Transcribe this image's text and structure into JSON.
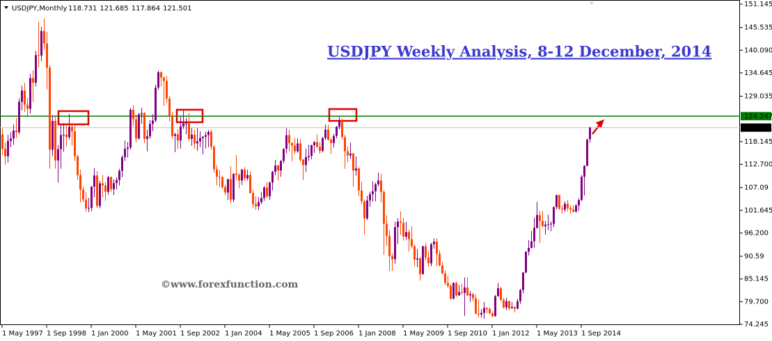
{
  "chart_data": {
    "type": "candlestick",
    "symbol": "USDJPY,Monthly",
    "title": "USDJPY Weekly Analysis, 8-12 December, 2014",
    "watermark": "©www.forexfunction.com",
    "up_color": "#800080",
    "down_color": "#ff4500",
    "ylim": [
      74.08,
      152.15
    ],
    "yticks": [
      151.145,
      145.535,
      {
        "value": 140.09,
        "label": "140.090"
      },
      134.645,
      129.035,
      118.145,
      {
        "value": 112.7,
        "label": "112.700"
      },
      107.09,
      101.645,
      {
        "value": 96.2,
        "label": "96.200"
      },
      90.59,
      85.145,
      {
        "value": 79.7,
        "label": "79.700"
      },
      74.245
    ],
    "xticks": [
      "1 May 1997",
      "1 Sep 1998",
      "1 Jan 2000",
      "1 May 2001",
      "1 Sep 2002",
      "1 Jan 2004",
      "1 May 2005",
      "1 Sep 2006",
      "1 Jan 2008",
      "1 May 2009",
      "1 Sep 2010",
      "1 Jan 2012",
      "1 May 2013",
      "1 Sep 2014"
    ],
    "level": {
      "value": 124.247,
      "color": "#008000"
    },
    "candles": [
      [
        119.9,
        121.4,
        114.9,
        116.4
      ],
      [
        116.4,
        117.9,
        112.6,
        114.6
      ],
      [
        114.6,
        119.8,
        113.1,
        118.3
      ],
      [
        118.3,
        120.4,
        116.8,
        118.9
      ],
      [
        118.9,
        122.3,
        117.4,
        120.8
      ],
      [
        120.8,
        123.8,
        119.0,
        120.4
      ],
      [
        120.4,
        128.5,
        119.9,
        127.7
      ],
      [
        127.7,
        131.6,
        125.6,
        130.4
      ],
      [
        130.4,
        132.2,
        125.2,
        127.0
      ],
      [
        127.0,
        128.6,
        124.4,
        126.0
      ],
      [
        126.0,
        134.4,
        124.9,
        133.4
      ],
      [
        133.4,
        135.3,
        127.7,
        132.3
      ],
      [
        132.3,
        139.9,
        131.4,
        138.9
      ],
      [
        138.9,
        146.9,
        136.0,
        138.8
      ],
      [
        138.8,
        145.7,
        137.5,
        144.7
      ],
      [
        144.7,
        147.7,
        140.2,
        141.7
      ],
      [
        141.7,
        144.5,
        130.7,
        135.9
      ],
      [
        135.9,
        136.5,
        111.6,
        116.2
      ],
      [
        116.2,
        124.4,
        114.7,
        123.1
      ],
      [
        123.1,
        124.1,
        111.7,
        113.6
      ],
      [
        113.6,
        117.3,
        108.3,
        116.3
      ],
      [
        116.3,
        122.1,
        111.6,
        119.7
      ],
      [
        119.7,
        122.5,
        115.7,
        119.8
      ],
      [
        119.8,
        122.3,
        117.0,
        119.2
      ],
      [
        119.2,
        124.8,
        118.6,
        121.7
      ],
      [
        121.7,
        122.6,
        117.2,
        120.6
      ],
      [
        120.6,
        122.4,
        113.5,
        114.6
      ],
      [
        114.6,
        115.0,
        109.0,
        110.1
      ],
      [
        110.1,
        111.4,
        103.5,
        106.6
      ],
      [
        106.6,
        107.3,
        103.6,
        104.2
      ],
      [
        104.2,
        106.0,
        101.3,
        102.1
      ],
      [
        102.1,
        104.6,
        101.2,
        102.2
      ],
      [
        102.2,
        107.5,
        101.4,
        107.3
      ],
      [
        107.3,
        111.8,
        104.8,
        110.0
      ],
      [
        110.0,
        111.0,
        102.2,
        102.7
      ],
      [
        102.7,
        108.7,
        102.1,
        108.1
      ],
      [
        108.1,
        110.1,
        104.8,
        107.6
      ],
      [
        107.6,
        108.4,
        103.9,
        106.1
      ],
      [
        106.1,
        109.9,
        105.4,
        109.6
      ],
      [
        109.6,
        109.8,
        106.0,
        106.7
      ],
      [
        106.7,
        109.1,
        105.3,
        108.2
      ],
      [
        108.2,
        109.6,
        106.6,
        108.9
      ],
      [
        108.9,
        111.6,
        107.6,
        111.1
      ],
      [
        111.1,
        114.8,
        109.6,
        114.4
      ],
      [
        114.4,
        118.4,
        113.5,
        116.4
      ],
      [
        116.4,
        118.0,
        114.3,
        116.7
      ],
      [
        116.7,
        126.2,
        116.2,
        125.8
      ],
      [
        125.8,
        126.9,
        121.9,
        123.5
      ],
      [
        123.5,
        124.6,
        118.0,
        118.9
      ],
      [
        118.9,
        125.0,
        118.6,
        124.7
      ],
      [
        124.7,
        126.3,
        122.4,
        125.0
      ],
      [
        125.0,
        125.2,
        117.8,
        118.8
      ],
      [
        118.8,
        121.0,
        115.8,
        119.4
      ],
      [
        119.4,
        123.3,
        118.8,
        122.4
      ],
      [
        122.4,
        124.7,
        120.6,
        123.2
      ],
      [
        123.2,
        131.8,
        122.8,
        131.1
      ],
      [
        131.1,
        135.2,
        130.6,
        134.8
      ],
      [
        134.8,
        135.0,
        131.4,
        133.5
      ],
      [
        133.5,
        133.8,
        126.7,
        132.7
      ],
      [
        132.7,
        133.9,
        127.5,
        128.5
      ],
      [
        128.5,
        129.1,
        123.0,
        124.2
      ],
      [
        124.2,
        125.3,
        118.9,
        119.5
      ],
      [
        119.5,
        120.3,
        115.6,
        119.9
      ],
      [
        119.9,
        121.1,
        116.3,
        118.4
      ],
      [
        118.4,
        124.4,
        116.5,
        121.8
      ],
      [
        121.8,
        125.6,
        121.2,
        122.5
      ],
      [
        122.5,
        123.8,
        119.9,
        122.5
      ],
      [
        122.5,
        125.0,
        118.2,
        118.8
      ],
      [
        118.8,
        121.4,
        117.1,
        119.8
      ],
      [
        119.8,
        121.0,
        116.4,
        117.7
      ],
      [
        117.7,
        121.4,
        115.9,
        118.2
      ],
      [
        118.2,
        120.6,
        116.8,
        119.0
      ],
      [
        119.0,
        119.5,
        115.1,
        119.3
      ],
      [
        119.3,
        120.5,
        116.5,
        119.7
      ],
      [
        119.7,
        120.9,
        116.8,
        120.5
      ],
      [
        120.5,
        121.0,
        116.2,
        116.9
      ],
      [
        116.9,
        117.2,
        110.7,
        111.5
      ],
      [
        111.5,
        112.4,
        107.6,
        109.7
      ],
      [
        109.7,
        111.3,
        107.1,
        109.6
      ],
      [
        109.6,
        109.9,
        106.7,
        107.2
      ],
      [
        107.2,
        107.8,
        105.3,
        105.9
      ],
      [
        105.9,
        109.3,
        104.1,
        109.1
      ],
      [
        109.1,
        112.2,
        103.4,
        104.2
      ],
      [
        104.2,
        110.5,
        103.6,
        110.4
      ],
      [
        110.4,
        114.9,
        108.9,
        110.1
      ],
      [
        110.1,
        110.6,
        106.9,
        108.8
      ],
      [
        108.8,
        111.6,
        107.7,
        111.4
      ],
      [
        111.4,
        112.0,
        108.7,
        109.3
      ],
      [
        109.3,
        111.4,
        108.8,
        110.1
      ],
      [
        110.1,
        111.0,
        105.6,
        105.8
      ],
      [
        105.8,
        106.6,
        102.1,
        103.1
      ],
      [
        103.1,
        105.0,
        101.8,
        102.6
      ],
      [
        102.6,
        104.8,
        101.7,
        103.6
      ],
      [
        103.6,
        106.0,
        103.1,
        104.6
      ],
      [
        104.6,
        107.5,
        103.9,
        107.1
      ],
      [
        107.1,
        108.4,
        104.5,
        105.0
      ],
      [
        105.0,
        108.5,
        104.1,
        108.3
      ],
      [
        108.3,
        111.1,
        106.4,
        110.9
      ],
      [
        110.9,
        113.7,
        110.1,
        112.4
      ],
      [
        112.4,
        112.5,
        108.8,
        111.2
      ],
      [
        111.2,
        113.7,
        109.7,
        113.5
      ],
      [
        113.5,
        116.5,
        112.9,
        116.4
      ],
      [
        116.4,
        121.4,
        115.3,
        119.7
      ],
      [
        119.7,
        121.0,
        115.8,
        117.8
      ],
      [
        117.8,
        118.0,
        113.4,
        117.2
      ],
      [
        117.2,
        119.0,
        115.1,
        115.8
      ],
      [
        115.8,
        119.0,
        115.4,
        117.7
      ],
      [
        117.7,
        118.7,
        113.2,
        113.8
      ],
      [
        113.8,
        114.0,
        108.9,
        112.5
      ],
      [
        112.5,
        116.5,
        110.8,
        114.4
      ],
      [
        114.4,
        117.4,
        113.5,
        114.7
      ],
      [
        114.7,
        117.4,
        113.9,
        117.3
      ],
      [
        117.3,
        118.3,
        115.4,
        118.0
      ],
      [
        118.0,
        119.9,
        116.5,
        116.9
      ],
      [
        116.9,
        118.0,
        115.2,
        115.9
      ],
      [
        115.9,
        119.2,
        115.5,
        119.0
      ],
      [
        119.0,
        122.2,
        118.5,
        121.0
      ],
      [
        121.0,
        122.2,
        118.3,
        118.6
      ],
      [
        118.6,
        118.9,
        115.2,
        117.8
      ],
      [
        117.8,
        120.0,
        116.7,
        119.5
      ],
      [
        119.5,
        121.9,
        118.9,
        121.7
      ],
      [
        121.7,
        124.1,
        121.1,
        123.2
      ],
      [
        123.2,
        123.7,
        118.6,
        119.2
      ],
      [
        119.2,
        119.7,
        111.6,
        115.8
      ],
      [
        115.8,
        117.0,
        113.2,
        114.8
      ],
      [
        114.8,
        117.9,
        114.0,
        115.3
      ],
      [
        115.3,
        115.4,
        107.3,
        111.2
      ],
      [
        111.2,
        114.6,
        110.0,
        111.7
      ],
      [
        111.7,
        111.9,
        105.0,
        106.4
      ],
      [
        106.4,
        108.5,
        103.1,
        103.8
      ],
      [
        103.8,
        104.2,
        95.8,
        99.7
      ],
      [
        99.7,
        105.1,
        99.3,
        104.0
      ],
      [
        104.0,
        106.1,
        102.5,
        105.5
      ],
      [
        105.5,
        108.6,
        103.7,
        106.2
      ],
      [
        106.2,
        108.3,
        103.8,
        107.9
      ],
      [
        107.9,
        110.7,
        107.4,
        108.8
      ],
      [
        108.8,
        110.4,
        103.5,
        106.0
      ],
      [
        106.0,
        106.5,
        90.9,
        98.4
      ],
      [
        98.4,
        100.4,
        93.1,
        95.5
      ],
      [
        95.5,
        96.9,
        87.1,
        90.6
      ],
      [
        90.6,
        91.3,
        87.1,
        89.9
      ],
      [
        89.9,
        98.9,
        88.8,
        97.6
      ],
      [
        97.6,
        99.7,
        93.5,
        98.9
      ],
      [
        98.9,
        101.4,
        95.7,
        98.6
      ],
      [
        98.6,
        99.8,
        94.4,
        95.3
      ],
      [
        95.3,
        98.9,
        94.5,
        96.4
      ],
      [
        96.4,
        97.0,
        91.7,
        94.7
      ],
      [
        94.7,
        97.8,
        92.5,
        93.0
      ],
      [
        93.0,
        93.4,
        88.2,
        89.8
      ],
      [
        89.8,
        92.3,
        88.0,
        90.1
      ],
      [
        90.1,
        90.4,
        84.8,
        86.3
      ],
      [
        86.3,
        93.1,
        86.2,
        93.0
      ],
      [
        93.0,
        93.8,
        89.6,
        90.3
      ],
      [
        90.3,
        91.8,
        88.1,
        88.9
      ],
      [
        88.9,
        93.8,
        88.2,
        93.5
      ],
      [
        93.5,
        94.9,
        92.4,
        94.1
      ],
      [
        94.1,
        94.9,
        88.2,
        91.2
      ],
      [
        91.2,
        92.1,
        88.2,
        88.4
      ],
      [
        88.4,
        89.2,
        86.2,
        86.5
      ],
      [
        86.5,
        87.2,
        83.6,
        84.2
      ],
      [
        84.2,
        85.9,
        82.9,
        83.5
      ],
      [
        83.5,
        83.9,
        80.2,
        80.4
      ],
      [
        80.4,
        84.4,
        80.2,
        84.2
      ],
      [
        84.2,
        84.5,
        80.9,
        81.2
      ],
      [
        81.2,
        83.7,
        81.1,
        82.0
      ],
      [
        82.0,
        84.0,
        81.4,
        81.8
      ],
      [
        81.8,
        85.5,
        76.3,
        83.1
      ],
      [
        83.1,
        85.5,
        81.1,
        81.2
      ],
      [
        81.2,
        82.2,
        79.6,
        81.5
      ],
      [
        81.5,
        81.8,
        79.7,
        80.5
      ],
      [
        80.5,
        81.4,
        76.7,
        76.8
      ],
      [
        76.8,
        80.2,
        75.9,
        76.6
      ],
      [
        76.6,
        77.9,
        75.9,
        77.0
      ],
      [
        77.0,
        79.6,
        75.6,
        78.2
      ],
      [
        78.2,
        78.3,
        76.9,
        77.9
      ],
      [
        77.9,
        78.3,
        76.6,
        76.9
      ],
      [
        76.9,
        77.4,
        76.0,
        76.2
      ],
      [
        76.2,
        81.3,
        76.1,
        81.0
      ],
      [
        81.0,
        84.2,
        80.9,
        82.9
      ],
      [
        82.9,
        83.3,
        79.8,
        80.1
      ],
      [
        80.1,
        80.6,
        78.0,
        78.3
      ],
      [
        78.3,
        80.6,
        77.7,
        79.8
      ],
      [
        79.8,
        80.0,
        77.6,
        78.1
      ],
      [
        78.1,
        79.6,
        78.0,
        78.4
      ],
      [
        78.4,
        78.6,
        77.1,
        78.0
      ],
      [
        78.0,
        80.4,
        77.9,
        79.8
      ],
      [
        79.8,
        82.8,
        79.1,
        82.5
      ],
      [
        82.5,
        86.8,
        81.7,
        86.7
      ],
      [
        86.7,
        91.7,
        86.5,
        91.7
      ],
      [
        91.7,
        94.5,
        90.8,
        92.6
      ],
      [
        92.6,
        96.7,
        92.5,
        94.2
      ],
      [
        94.2,
        99.9,
        92.6,
        97.4
      ],
      [
        97.4,
        103.7,
        97.2,
        100.5
      ],
      [
        100.5,
        101.5,
        93.8,
        99.1
      ],
      [
        99.1,
        101.5,
        97.6,
        97.8
      ],
      [
        97.8,
        99.1,
        95.8,
        98.2
      ],
      [
        98.2,
        100.6,
        96.9,
        98.3
      ],
      [
        98.3,
        99.0,
        96.6,
        98.4
      ],
      [
        98.4,
        102.6,
        97.6,
        102.4
      ],
      [
        102.4,
        105.4,
        101.9,
        105.3
      ],
      [
        105.3,
        105.4,
        101.8,
        102.0
      ],
      [
        102.0,
        102.8,
        100.8,
        101.8
      ],
      [
        101.8,
        103.8,
        101.2,
        103.2
      ],
      [
        103.2,
        104.1,
        101.4,
        102.2
      ],
      [
        102.2,
        102.8,
        100.8,
        101.8
      ],
      [
        101.8,
        102.8,
        101.1,
        101.3
      ],
      [
        101.3,
        103.2,
        101.1,
        102.8
      ],
      [
        102.8,
        104.5,
        101.5,
        104.1
      ],
      [
        104.1,
        110.1,
        103.8,
        109.7
      ],
      [
        109.7,
        112.5,
        105.2,
        112.3
      ],
      [
        112.3,
        118.9,
        112.2,
        118.6
      ],
      [
        118.731,
        121.685,
        117.864,
        121.501
      ]
    ]
  }
}
